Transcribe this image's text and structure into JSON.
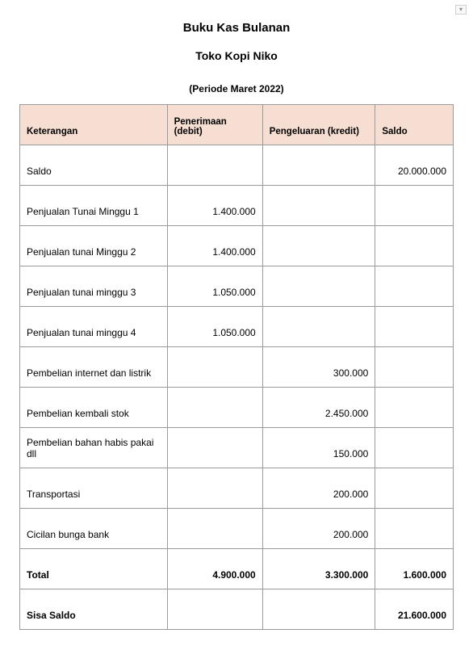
{
  "doc": {
    "title": "Buku Kas Bulanan",
    "subtitle": "Toko Kopi Niko",
    "period": "(Periode Maret 2022)"
  },
  "table": {
    "headers": {
      "keterangan": "Keterangan",
      "debit": "Penerimaan (debit)",
      "kredit": "Pengeluaran (kredit)",
      "saldo": "Saldo"
    },
    "header_bg": "#f7ded2",
    "border_color": "#9a9a9a",
    "rows": [
      {
        "ket": "Saldo",
        "debit": "",
        "kredit": "",
        "saldo": "20.000.000",
        "bold": false
      },
      {
        "ket": "Penjualan Tunai Minggu 1",
        "debit": "1.400.000",
        "kredit": "",
        "saldo": "",
        "bold": false
      },
      {
        "ket": "Penjualan tunai Minggu 2",
        "debit": "1.400.000",
        "kredit": "",
        "saldo": "",
        "bold": false
      },
      {
        "ket": "Penjualan tunai minggu 3",
        "debit": "1.050.000",
        "kredit": "",
        "saldo": "",
        "bold": false
      },
      {
        "ket": "Penjualan tunai minggu 4",
        "debit": "1.050.000",
        "kredit": "",
        "saldo": "",
        "bold": false
      },
      {
        "ket": "Pembelian internet dan listrik",
        "debit": "",
        "kredit": "300.000",
        "saldo": "",
        "bold": false
      },
      {
        "ket": "Pembelian kembali stok",
        "debit": "",
        "kredit": "2.450.000",
        "saldo": "",
        "bold": false
      },
      {
        "ket": "Pembelian bahan habis pakai dll",
        "debit": "",
        "kredit": "150.000",
        "saldo": "",
        "bold": false
      },
      {
        "ket": "Transportasi",
        "debit": "",
        "kredit": "200.000",
        "saldo": "",
        "bold": false
      },
      {
        "ket": "Cicilan bunga bank",
        "debit": "",
        "kredit": "200.000",
        "saldo": "",
        "bold": false
      },
      {
        "ket": "Total",
        "debit": "4.900.000",
        "kredit": "3.300.000",
        "saldo": "1.600.000",
        "bold": true
      },
      {
        "ket": "Sisa Saldo",
        "debit": "",
        "kredit": "",
        "saldo": "21.600.000",
        "bold": true
      }
    ]
  }
}
